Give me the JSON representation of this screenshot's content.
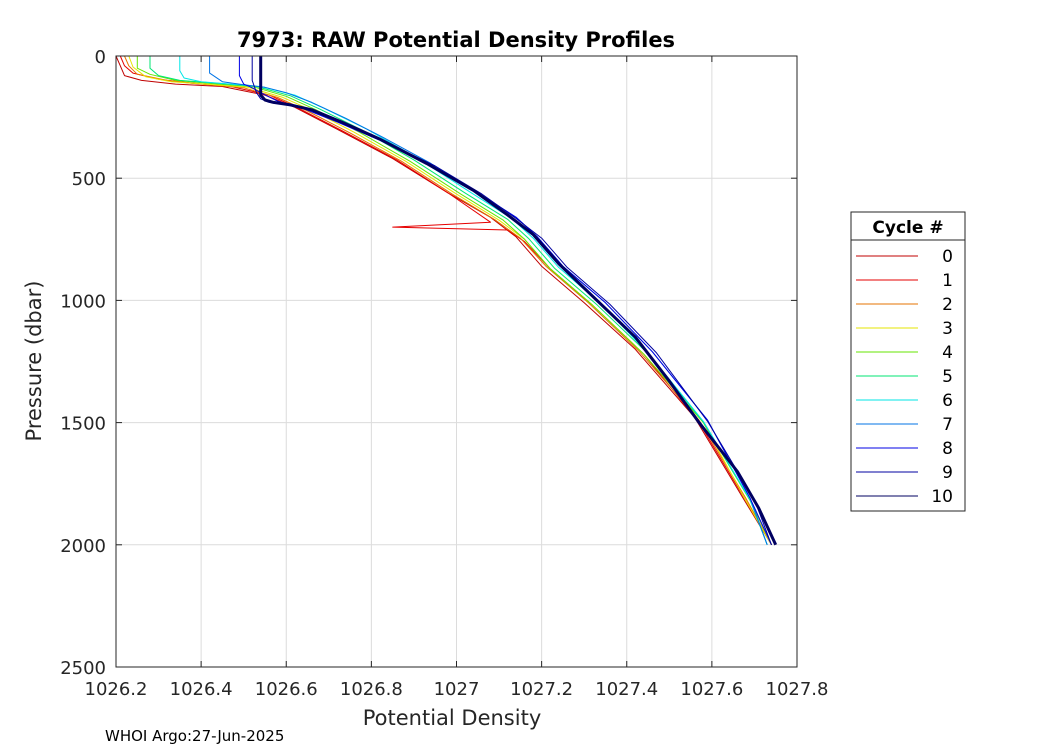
{
  "chart_data": {
    "type": "line",
    "title": "7973: RAW Potential Density Profiles",
    "xlabel": "Potential Density",
    "ylabel": "Pressure (dbar)",
    "xlim": [
      1026.2,
      1027.8
    ],
    "ylim": [
      0,
      2500
    ],
    "y_reversed": true,
    "grid": true,
    "x_ticks": [
      1026.2,
      1026.4,
      1026.6,
      1026.8,
      1027,
      1027.2,
      1027.4,
      1027.6,
      1027.8
    ],
    "x_tick_labels": [
      "1026.2",
      "1026.4",
      "1026.6",
      "1026.8",
      "1027",
      "1027.2",
      "1027.4",
      "1027.6",
      "1027.8"
    ],
    "y_ticks": [
      0,
      500,
      1000,
      1500,
      2000,
      2500
    ],
    "y_tick_labels": [
      "0",
      "500",
      "1000",
      "1500",
      "2000",
      "2500"
    ],
    "legend_title": "Cycle #",
    "legend_position": "outside-right",
    "series": [
      {
        "name": "0",
        "color": "#c00000",
        "x": [
          1026.2,
          1026.21,
          1026.22,
          1026.26,
          1026.34,
          1026.45,
          1026.55,
          1026.62,
          1026.72,
          1026.85,
          1026.98,
          1027.08,
          1027.14,
          1027.2,
          1027.3,
          1027.42,
          1027.56,
          1027.67,
          1027.74
        ],
        "y": [
          0,
          40,
          80,
          100,
          115,
          125,
          160,
          210,
          300,
          420,
          560,
          660,
          740,
          860,
          1010,
          1200,
          1480,
          1800,
          2000
        ]
      },
      {
        "name": "1",
        "color": "#e60000",
        "x": [
          1026.21,
          1026.22,
          1026.24,
          1026.3,
          1026.38,
          1026.47,
          1026.56,
          1026.63,
          1026.73,
          1026.86,
          1026.98,
          1027.08,
          1026.85,
          1027.12,
          1027.16,
          1027.22,
          1027.32,
          1027.44,
          1027.57,
          1027.68,
          1027.74
        ],
        "y": [
          0,
          40,
          70,
          95,
          112,
          125,
          160,
          215,
          305,
          425,
          560,
          680,
          700,
          712,
          760,
          870,
          1020,
          1220,
          1500,
          1820,
          2000
        ]
      },
      {
        "name": "2",
        "color": "#e67300",
        "x": [
          1026.22,
          1026.23,
          1026.25,
          1026.32,
          1026.42,
          1026.5,
          1026.58,
          1026.65,
          1026.75,
          1026.87,
          1026.99,
          1027.09,
          1027.15,
          1027.21,
          1027.31,
          1027.43,
          1027.57,
          1027.68,
          1027.74
        ],
        "y": [
          0,
          40,
          75,
          100,
          118,
          130,
          170,
          225,
          315,
          430,
          565,
          670,
          745,
          860,
          1010,
          1210,
          1490,
          1810,
          2000
        ]
      },
      {
        "name": "3",
        "color": "#e6e600",
        "x": [
          1026.23,
          1026.24,
          1026.27,
          1026.33,
          1026.43,
          1026.51,
          1026.59,
          1026.66,
          1026.76,
          1026.88,
          1027.0,
          1027.1,
          1027.16,
          1027.22,
          1027.32,
          1027.44,
          1027.58,
          1027.68,
          1027.74
        ],
        "y": [
          0,
          45,
          85,
          105,
          118,
          128,
          168,
          222,
          312,
          430,
          565,
          672,
          750,
          870,
          1020,
          1220,
          1500,
          1820,
          2000
        ]
      },
      {
        "name": "4",
        "color": "#66e600",
        "x": [
          1026.25,
          1026.25,
          1026.28,
          1026.34,
          1026.44,
          1026.52,
          1026.6,
          1026.67,
          1026.77,
          1026.89,
          1027.01,
          1027.11,
          1027.16,
          1027.22,
          1027.32,
          1027.44,
          1027.58,
          1027.69,
          1027.74
        ],
        "y": [
          0,
          50,
          75,
          100,
          115,
          125,
          165,
          220,
          310,
          430,
          565,
          672,
          750,
          870,
          1020,
          1220,
          1500,
          1820,
          2000
        ]
      },
      {
        "name": "5",
        "color": "#00e673",
        "x": [
          1026.28,
          1026.28,
          1026.3,
          1026.35,
          1026.45,
          1026.53,
          1026.61,
          1026.68,
          1026.78,
          1026.9,
          1027.02,
          1027.12,
          1027.17,
          1027.23,
          1027.33,
          1027.45,
          1027.58,
          1027.69,
          1027.73
        ],
        "y": [
          0,
          50,
          80,
          100,
          113,
          125,
          163,
          218,
          305,
          425,
          560,
          668,
          748,
          868,
          1018,
          1218,
          1498,
          1818,
          2000
        ]
      },
      {
        "name": "6",
        "color": "#00e6e6",
        "x": [
          1026.35,
          1026.35,
          1026.36,
          1026.4,
          1026.47,
          1026.54,
          1026.62,
          1026.69,
          1026.79,
          1026.91,
          1027.03,
          1027.13,
          1027.18,
          1027.24,
          1027.34,
          1027.45,
          1027.58,
          1027.69,
          1027.73
        ],
        "y": [
          0,
          60,
          90,
          105,
          115,
          125,
          160,
          215,
          300,
          420,
          555,
          665,
          745,
          865,
          1015,
          1215,
          1495,
          1815,
          2000
        ]
      },
      {
        "name": "7",
        "color": "#0073e6",
        "x": [
          1026.42,
          1026.42,
          1026.45,
          1026.5,
          1026.55,
          1026.6,
          1026.66,
          1026.74,
          1026.83,
          1026.94,
          1027.05,
          1027.14,
          1027.19,
          1027.25,
          1027.35,
          1027.46,
          1027.59,
          1027.69,
          1027.73
        ],
        "y": [
          0,
          70,
          105,
          118,
          128,
          150,
          190,
          255,
          335,
          440,
          560,
          660,
          740,
          860,
          1010,
          1210,
          1490,
          1810,
          2000
        ]
      },
      {
        "name": "8",
        "color": "#0000e6",
        "x": [
          1026.49,
          1026.49,
          1026.5,
          1026.52,
          1026.54,
          1026.58,
          1026.64,
          1026.72,
          1026.82,
          1026.94,
          1027.05,
          1027.14,
          1027.19,
          1027.25,
          1027.35,
          1027.46,
          1027.59,
          1027.69,
          1027.74
        ],
        "y": [
          0,
          80,
          115,
          130,
          150,
          185,
          215,
          270,
          345,
          445,
          560,
          660,
          740,
          860,
          1010,
          1210,
          1490,
          1810,
          2000
        ]
      },
      {
        "name": "9",
        "color": "#0000a0",
        "x": [
          1026.52,
          1026.52,
          1026.53,
          1026.54,
          1026.56,
          1026.6,
          1026.66,
          1026.73,
          1026.83,
          1026.95,
          1027.06,
          1027.14,
          1027.2,
          1027.26,
          1027.36,
          1027.47,
          1027.59,
          1027.7,
          1027.74
        ],
        "y": [
          0,
          100,
          150,
          175,
          190,
          200,
          220,
          275,
          350,
          450,
          565,
          665,
          745,
          865,
          1015,
          1215,
          1495,
          1815,
          2000
        ]
      },
      {
        "name": "10",
        "color": "#000060",
        "width": 3,
        "x": [
          1026.54,
          1026.54,
          1026.54,
          1026.55,
          1026.57,
          1026.61,
          1026.66,
          1026.73,
          1026.82,
          1026.93,
          1027.04,
          1027.12,
          1027.18,
          1027.24,
          1027.33,
          1027.42,
          1027.5,
          1027.57,
          1027.66,
          1027.71,
          1027.75
        ],
        "y": [
          0,
          100,
          160,
          180,
          190,
          200,
          220,
          270,
          340,
          440,
          550,
          650,
          730,
          850,
          1000,
          1150,
          1330,
          1500,
          1700,
          1850,
          2000
        ]
      }
    ]
  },
  "footer": {
    "text": "WHOI Argo:27-Jun-2025"
  }
}
